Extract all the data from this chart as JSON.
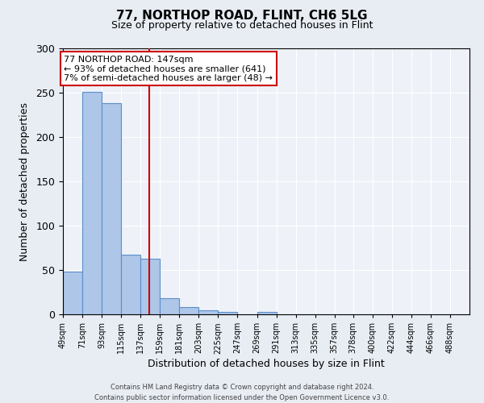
{
  "title": "77, NORTHOP ROAD, FLINT, CH6 5LG",
  "subtitle": "Size of property relative to detached houses in Flint",
  "xlabel": "Distribution of detached houses by size in Flint",
  "ylabel": "Number of detached properties",
  "bin_labels": [
    "49sqm",
    "71sqm",
    "93sqm",
    "115sqm",
    "137sqm",
    "159sqm",
    "181sqm",
    "203sqm",
    "225sqm",
    "247sqm",
    "269sqm",
    "291sqm",
    "313sqm",
    "335sqm",
    "357sqm",
    "378sqm",
    "400sqm",
    "422sqm",
    "444sqm",
    "466sqm",
    "488sqm"
  ],
  "bar_values": [
    48,
    251,
    238,
    67,
    63,
    18,
    8,
    5,
    3,
    0,
    3,
    0,
    0,
    0,
    0,
    0,
    0,
    0,
    0,
    0,
    0
  ],
  "bar_color": "#aec6e8",
  "bar_edge_color": "#5b8fc9",
  "vline_x": 147,
  "vline_color": "#cc0000",
  "annotation_title": "77 NORTHOP ROAD: 147sqm",
  "annotation_line1": "← 93% of detached houses are smaller (641)",
  "annotation_line2": "7% of semi-detached houses are larger (48) →",
  "annotation_box_color": "#ffffff",
  "annotation_box_edge_color": "#cc0000",
  "ylim": [
    0,
    300
  ],
  "yticks": [
    0,
    50,
    100,
    150,
    200,
    250,
    300
  ],
  "bin_edges": [
    49,
    71,
    93,
    115,
    137,
    159,
    181,
    203,
    225,
    247,
    269,
    291,
    313,
    335,
    357,
    378,
    400,
    422,
    444,
    466,
    488
  ],
  "footer_line1": "Contains HM Land Registry data © Crown copyright and database right 2024.",
  "footer_line2": "Contains public sector information licensed under the Open Government Licence v3.0.",
  "bg_color": "#e8edf4",
  "plot_bg_color": "#eef2f8"
}
